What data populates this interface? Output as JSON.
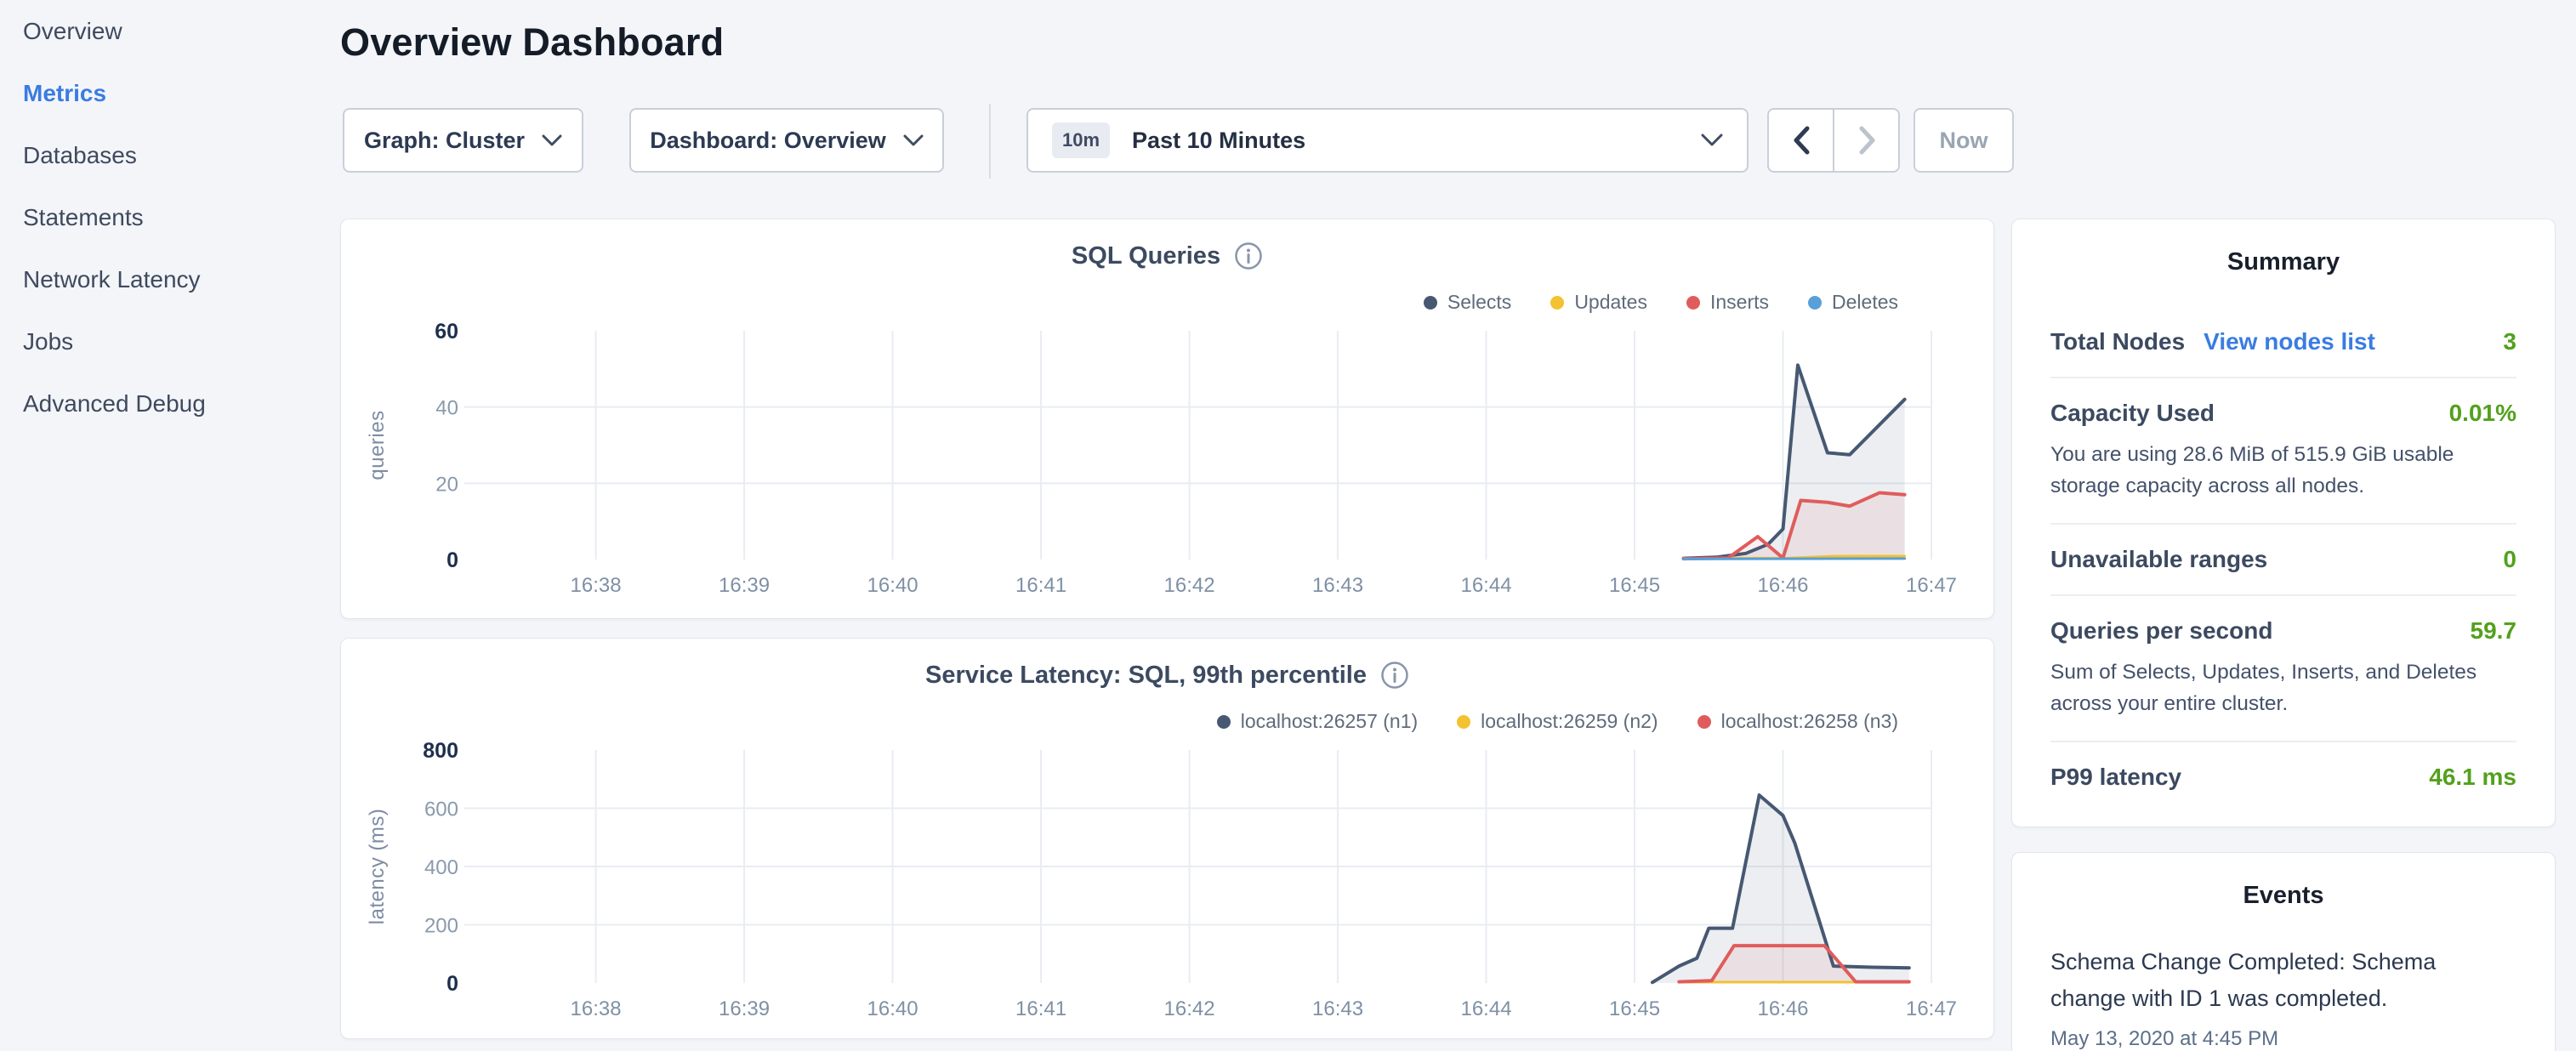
{
  "sidebar": {
    "items": [
      {
        "label": "Overview",
        "active": false
      },
      {
        "label": "Metrics",
        "active": true
      },
      {
        "label": "Databases",
        "active": false
      },
      {
        "label": "Statements",
        "active": false
      },
      {
        "label": "Network Latency",
        "active": false
      },
      {
        "label": "Jobs",
        "active": false
      },
      {
        "label": "Advanced Debug",
        "active": false
      }
    ]
  },
  "header": {
    "title": "Overview Dashboard"
  },
  "toolbar": {
    "graph_dropdown": {
      "label": "Graph: Cluster"
    },
    "dashboard_dropdown": {
      "label": "Dashboard: Overview"
    },
    "time_range": {
      "badge": "10m",
      "label": "Past 10 Minutes"
    },
    "now_button": "Now"
  },
  "colors": {
    "accent_blue": "#3a7ce1",
    "status_green": "#52a11c",
    "series_navy": "#475872",
    "series_yellow": "#f2c230",
    "series_red": "#e05c5c",
    "series_blue": "#58a0d8"
  },
  "summary": {
    "title": "Summary",
    "total_nodes": {
      "label": "Total Nodes",
      "link": "View nodes list",
      "value": "3"
    },
    "capacity": {
      "label": "Capacity Used",
      "value": "0.01%",
      "description": "You are using 28.6 MiB of 515.9 GiB usable storage capacity across all nodes."
    },
    "unavailable": {
      "label": "Unavailable ranges",
      "value": "0"
    },
    "qps": {
      "label": "Queries per second",
      "value": "59.7",
      "description": "Sum of Selects, Updates, Inserts, and Deletes across your entire cluster."
    },
    "p99": {
      "label": "P99 latency",
      "value": "46.1 ms"
    }
  },
  "events": {
    "title": "Events",
    "items": [
      {
        "text": "Schema Change Completed: Schema change with ID 1 was completed.",
        "timestamp": "May 13, 2020 at 4:45 PM"
      }
    ]
  },
  "chart_data": [
    {
      "type": "line",
      "name": "sql-queries",
      "title": "SQL Queries",
      "xlabel": "",
      "ylabel": "queries",
      "ylim": [
        0,
        60
      ],
      "yticks": [
        0,
        20,
        40,
        60
      ],
      "grid": true,
      "legend_position": "top-right",
      "xticks": [
        "16:38",
        "16:39",
        "16:40",
        "16:41",
        "16:42",
        "16:43",
        "16:44",
        "16:45",
        "16:46",
        "16:47"
      ],
      "xtick_minutes": [
        38,
        39,
        40,
        41,
        42,
        43,
        44,
        45,
        46,
        47
      ],
      "x_domain_minutes": [
        37.2,
        47.0
      ],
      "series": [
        {
          "name": "Selects",
          "color": "#475872",
          "fill": "rgba(71,88,114,0.10)",
          "width": 4,
          "points": [
            [
              45.33,
              0.3
            ],
            [
              45.55,
              0.6
            ],
            [
              45.75,
              1.6
            ],
            [
              45.9,
              4
            ],
            [
              46.0,
              8
            ],
            [
              46.1,
              51
            ],
            [
              46.3,
              28
            ],
            [
              46.45,
              27.5
            ],
            [
              46.82,
              42
            ]
          ]
        },
        {
          "name": "Updates",
          "color": "#f2c230",
          "fill": null,
          "width": 3,
          "points": [
            [
              45.33,
              0.3
            ],
            [
              46.05,
              0.4
            ],
            [
              46.35,
              0.9
            ],
            [
              46.82,
              0.9
            ]
          ]
        },
        {
          "name": "Inserts",
          "color": "#e05c5c",
          "fill": "rgba(224,92,92,0.09)",
          "width": 4,
          "points": [
            [
              45.33,
              0.2
            ],
            [
              45.63,
              0.4
            ],
            [
              45.83,
              6
            ],
            [
              46.0,
              0.4
            ],
            [
              46.12,
              15.5
            ],
            [
              46.3,
              15
            ],
            [
              46.45,
              14
            ],
            [
              46.65,
              17.5
            ],
            [
              46.82,
              17
            ]
          ]
        },
        {
          "name": "Deletes",
          "color": "#58a0d8",
          "fill": null,
          "width": 3,
          "points": [
            [
              45.33,
              0.15
            ],
            [
              46.82,
              0.25
            ]
          ]
        }
      ]
    },
    {
      "type": "line",
      "name": "service-latency",
      "title": "Service Latency: SQL, 99th percentile",
      "xlabel": "",
      "ylabel": "latency (ms)",
      "ylim": [
        0,
        800
      ],
      "yticks": [
        0,
        200,
        400,
        600,
        800
      ],
      "grid": true,
      "legend_position": "top-right",
      "xticks": [
        "16:38",
        "16:39",
        "16:40",
        "16:41",
        "16:42",
        "16:43",
        "16:44",
        "16:45",
        "16:46",
        "16:47"
      ],
      "xtick_minutes": [
        38,
        39,
        40,
        41,
        42,
        43,
        44,
        45,
        46,
        47
      ],
      "x_domain_minutes": [
        37.2,
        47.0
      ],
      "series": [
        {
          "name": "localhost:26257 (n1)",
          "color": "#475872",
          "fill": "rgba(71,88,114,0.10)",
          "width": 4,
          "points": [
            [
              45.12,
              2
            ],
            [
              45.3,
              58
            ],
            [
              45.42,
              85
            ],
            [
              45.5,
              188
            ],
            [
              45.66,
              188
            ],
            [
              45.84,
              645
            ],
            [
              46.0,
              575
            ],
            [
              46.08,
              480
            ],
            [
              46.34,
              58
            ],
            [
              46.6,
              54
            ],
            [
              46.85,
              52
            ]
          ]
        },
        {
          "name": "localhost:26259 (n2)",
          "color": "#f2c230",
          "fill": null,
          "width": 3,
          "points": [
            [
              45.3,
              3
            ],
            [
              46.85,
              3
            ]
          ]
        },
        {
          "name": "localhost:26258 (n3)",
          "color": "#e05c5c",
          "fill": "rgba(224,92,92,0.09)",
          "width": 4,
          "points": [
            [
              45.3,
              4
            ],
            [
              45.52,
              8
            ],
            [
              45.67,
              128
            ],
            [
              46.28,
              128
            ],
            [
              46.49,
              4
            ],
            [
              46.85,
              4
            ]
          ]
        }
      ]
    }
  ]
}
